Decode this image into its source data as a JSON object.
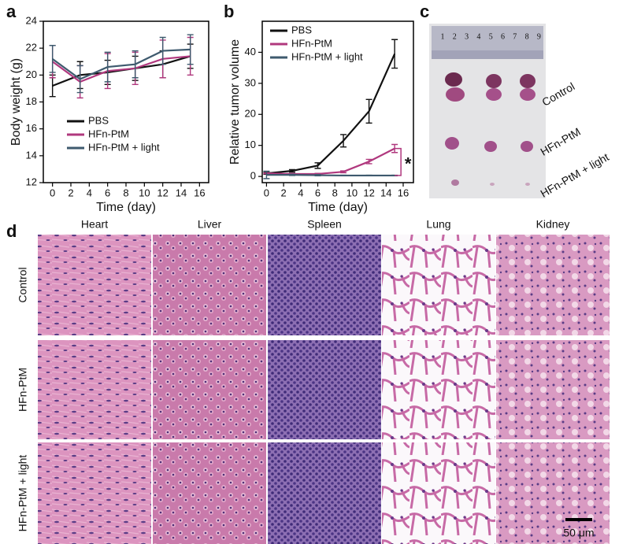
{
  "panel_labels": [
    "a",
    "b",
    "c",
    "d"
  ],
  "chart_data": [
    {
      "type": "line",
      "x_label": "Time (day)",
      "y_label": "Body weight (g)",
      "x": [
        0,
        3,
        6,
        9,
        12,
        15
      ],
      "xlim": [
        -1,
        17
      ],
      "xticks": [
        0,
        2,
        4,
        6,
        8,
        10,
        12,
        14,
        16
      ],
      "ylim": [
        12,
        24
      ],
      "yticks": [
        12,
        14,
        16,
        18,
        20,
        22,
        24
      ],
      "legend": "lower center",
      "series": [
        {
          "name": "PBS",
          "color": "#111111",
          "values": [
            19.2,
            20.0,
            20.2,
            20.5,
            20.8,
            21.4
          ],
          "errors": [
            0.8,
            1.0,
            0.9,
            0.9,
            1.0,
            0.9
          ]
        },
        {
          "name": "HFn-PtM",
          "color": "#b0387e",
          "values": [
            21.0,
            19.5,
            20.3,
            20.5,
            21.2,
            21.4
          ],
          "errors": [
            1.2,
            1.2,
            1.3,
            1.2,
            1.4,
            1.4
          ]
        },
        {
          "name": "HFn-PtM + light",
          "color": "#3e5a6e",
          "values": [
            21.2,
            19.7,
            20.6,
            20.8,
            21.8,
            21.9
          ],
          "errors": [
            1.0,
            1.0,
            1.1,
            1.0,
            1.0,
            1.1
          ]
        }
      ]
    },
    {
      "type": "line",
      "x_label": "Time (day)",
      "y_label": "Relative tumor volume",
      "x": [
        0,
        3,
        6,
        9,
        12,
        15
      ],
      "xlim": [
        -0.5,
        17.2
      ],
      "xticks": [
        0,
        2,
        4,
        6,
        8,
        10,
        12,
        14,
        16
      ],
      "ylim": [
        -2,
        50
      ],
      "yticks": [
        0,
        10,
        20,
        30,
        40
      ],
      "legend": "upper left",
      "annotation": "*",
      "series": [
        {
          "name": "PBS",
          "color": "#111111",
          "values": [
            1,
            1.8,
            3.5,
            11.5,
            21,
            39.5
          ],
          "errors": [
            0.3,
            0.4,
            0.9,
            2.0,
            3.8,
            4.6
          ]
        },
        {
          "name": "HFn-PtM",
          "color": "#b0387e",
          "values": [
            1,
            0.8,
            0.8,
            1.5,
            4.8,
            9
          ],
          "errors": [
            0.1,
            0.2,
            0.2,
            0.3,
            0.7,
            1.3
          ]
        },
        {
          "name": "HFn-PtM + light",
          "color": "#3e5a6e",
          "values": [
            0.5,
            0.5,
            0.4,
            0.3,
            0.3,
            0.3
          ],
          "errors": [
            1.2,
            0.2,
            0.2,
            0.1,
            0.1,
            0.1
          ]
        }
      ]
    }
  ],
  "photo": {
    "ruler": [
      "1",
      "2",
      "3",
      "4",
      "5",
      "6",
      "7",
      "8",
      "9"
    ],
    "labels": [
      "Control",
      "HFn-PtM",
      "HFn-PtM + light"
    ]
  },
  "histology": {
    "columns": [
      "Heart",
      "Liver",
      "Spleen",
      "Lung",
      "Kidney"
    ],
    "rows": [
      "Control",
      "HFn-PtM",
      "HFn-PtM + light"
    ],
    "scale_bar": "50 μm"
  }
}
